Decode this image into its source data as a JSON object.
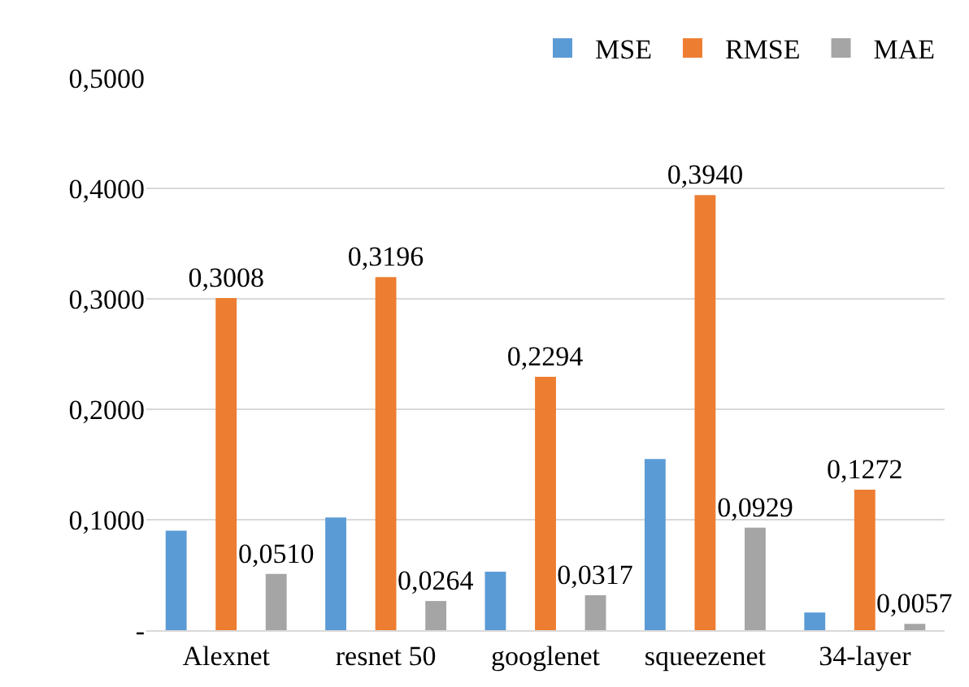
{
  "chart_data": {
    "type": "bar",
    "categories": [
      "Alexnet",
      "resnet 50",
      "googlenet",
      "squeezenet",
      "34-layer"
    ],
    "series": [
      {
        "name": "MSE",
        "color": "#5b9bd5",
        "values": [
          0.09,
          0.102,
          0.053,
          0.155,
          0.016
        ]
      },
      {
        "name": "RMSE",
        "color": "#ed7d31",
        "values": [
          0.3008,
          0.3196,
          0.2294,
          0.394,
          0.1272
        ],
        "value_labels": [
          "0,3008",
          "0,3196",
          "0,2294",
          "0,3940",
          "0,1272"
        ]
      },
      {
        "name": "MAE",
        "color": "#a5a5a5",
        "values": [
          0.051,
          0.0264,
          0.0317,
          0.0929,
          0.0057
        ],
        "value_labels": [
          "0,0510",
          "0,0264",
          "0,0317",
          "0,0929",
          "0,0057"
        ]
      }
    ],
    "ylim": [
      0,
      0.5
    ],
    "yticks": [
      {
        "value": 0,
        "label": "-"
      },
      {
        "value": 0.1,
        "label": "0,1000"
      },
      {
        "value": 0.2,
        "label": "0,2000"
      },
      {
        "value": 0.3,
        "label": "0,3000"
      },
      {
        "value": 0.4,
        "label": "0,4000"
      },
      {
        "value": 0.5,
        "label": "0,5000"
      }
    ],
    "grid": "y",
    "legend": "top right"
  }
}
